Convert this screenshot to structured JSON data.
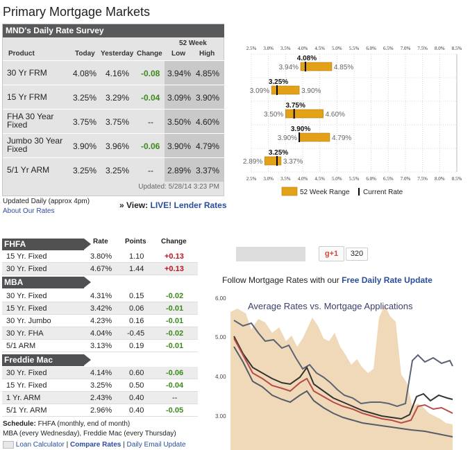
{
  "page_title": "Primary Mortgage Markets",
  "survey": {
    "header": "MND's Daily Rate Survey",
    "week_label": "52 Week",
    "columns": {
      "product": "Product",
      "today": "Today",
      "yesterday": "Yesterday",
      "change": "Change",
      "low": "Low",
      "high": "High"
    },
    "rows": [
      {
        "product": "30 Yr FRM",
        "today": "4.08%",
        "yesterday": "4.16%",
        "change": "-0.08",
        "low": "3.94%",
        "high": "4.85%"
      },
      {
        "product": "15 Yr FRM",
        "today": "3.25%",
        "yesterday": "3.29%",
        "change": "-0.04",
        "low": "3.09%",
        "high": "3.90%"
      },
      {
        "product": "FHA 30 Year Fixed",
        "today": "3.75%",
        "yesterday": "3.75%",
        "change": "--",
        "low": "3.50%",
        "high": "4.60%"
      },
      {
        "product": "Jumbo 30 Year Fixed",
        "today": "3.90%",
        "yesterday": "3.96%",
        "change": "-0.06",
        "low": "3.90%",
        "high": "4.79%"
      },
      {
        "product": "5/1 Yr ARM",
        "today": "3.25%",
        "yesterday": "3.25%",
        "change": "--",
        "low": "2.89%",
        "high": "3.37%"
      }
    ],
    "updated": "Updated: 5/28/14 3:23 PM",
    "updated_daily": "Updated Daily (approx 4pm)",
    "about_link": "About Our Rates",
    "view_prefix": "» View:",
    "view_link": "LIVE! Lender Rates"
  },
  "range_chart": {
    "ticks": [
      "2.5%",
      "3.0%",
      "3.5%",
      "4.0%",
      "4.5%",
      "5.0%",
      "5.5%",
      "6.0%",
      "6.5%",
      "7.0%",
      "7.5%",
      "8.0%",
      "8.5%"
    ],
    "axis_min": 2.5,
    "axis_max": 8.5,
    "rows": [
      {
        "current": 4.08,
        "low": 3.94,
        "high": 4.85,
        "current_label": "4.08%",
        "low_label": "3.94%",
        "high_label": "4.85%"
      },
      {
        "current": 3.25,
        "low": 3.09,
        "high": 3.9,
        "current_label": "3.25%",
        "low_label": "3.09%",
        "high_label": "3.90%"
      },
      {
        "current": 3.75,
        "low": 3.5,
        "high": 4.6,
        "current_label": "3.75%",
        "low_label": "3.50%",
        "high_label": "4.60%"
      },
      {
        "current": 3.9,
        "low": 3.9,
        "high": 4.79,
        "current_label": "3.90%",
        "low_label": "3.90%",
        "high_label": "4.79%"
      },
      {
        "current": 3.25,
        "low": 2.89,
        "high": 3.37,
        "current_label": "3.25%",
        "low_label": "2.89%",
        "high_label": "3.37%"
      }
    ],
    "legend_range": "52 Week Range",
    "legend_current": "Current Rate",
    "bar_color": "#e3a117"
  },
  "agency": {
    "columns": {
      "rate": "Rate",
      "points": "Points",
      "change": "Change"
    },
    "sections": [
      {
        "name": "FHFA",
        "rows": [
          {
            "label": "15 Yr. Fixed",
            "rate": "3.80%",
            "points": "1.10",
            "change": "+0.13"
          },
          {
            "label": "30 Yr. Fixed",
            "rate": "4.67%",
            "points": "1.44",
            "change": "+0.13"
          }
        ]
      },
      {
        "name": "MBA",
        "rows": [
          {
            "label": "30 Yr. Fixed",
            "rate": "4.31%",
            "points": "0.15",
            "change": "-0.02"
          },
          {
            "label": "15 Yr. Fixed",
            "rate": "3.42%",
            "points": "0.06",
            "change": "-0.01"
          },
          {
            "label": "30 Yr. Jumbo",
            "rate": "4.23%",
            "points": "0.16",
            "change": "-0.01"
          },
          {
            "label": "30 Yr. FHA",
            "rate": "4.04%",
            "points": "-0.45",
            "change": "-0.02"
          },
          {
            "label": "5/1 ARM",
            "rate": "3.13%",
            "points": "0.19",
            "change": "-0.01"
          }
        ]
      },
      {
        "name": "Freddie Mac",
        "rows": [
          {
            "label": "30 Yr. Fixed",
            "rate": "4.14%",
            "points": "0.60",
            "change": "-0.06"
          },
          {
            "label": "15 Yr. Fixed",
            "rate": "3.25%",
            "points": "0.50",
            "change": "-0.04"
          },
          {
            "label": "1 Yr. ARM",
            "rate": "2.43%",
            "points": "0.40",
            "change": "--"
          },
          {
            "label": "5/1 Yr. ARM",
            "rate": "2.96%",
            "points": "0.40",
            "change": "-0.05"
          }
        ]
      }
    ],
    "schedule_label": "Schedule:",
    "schedule_text1": " FHFA (monthly, end of month)",
    "schedule_text2": "MBA (every Wednesday), Freddie Mac (every Thursday)",
    "footer_links": [
      "Loan Calculator",
      "Compare Rates",
      "Daily Email Update"
    ],
    "footer_sep": "|"
  },
  "social": {
    "gplus_label": "g+1",
    "gplus_count": "320"
  },
  "follow": {
    "prefix": "Follow Mortgage Rates with our ",
    "link": "Free Daily Rate Update"
  },
  "avg_chart": {
    "title": "Average Rates vs. Mortgage Applications",
    "y_ticks": [
      "6.00",
      "5.00",
      "4.00",
      "3.00"
    ],
    "y_values": [
      6.0,
      5.0,
      4.0,
      3.0
    ]
  }
}
